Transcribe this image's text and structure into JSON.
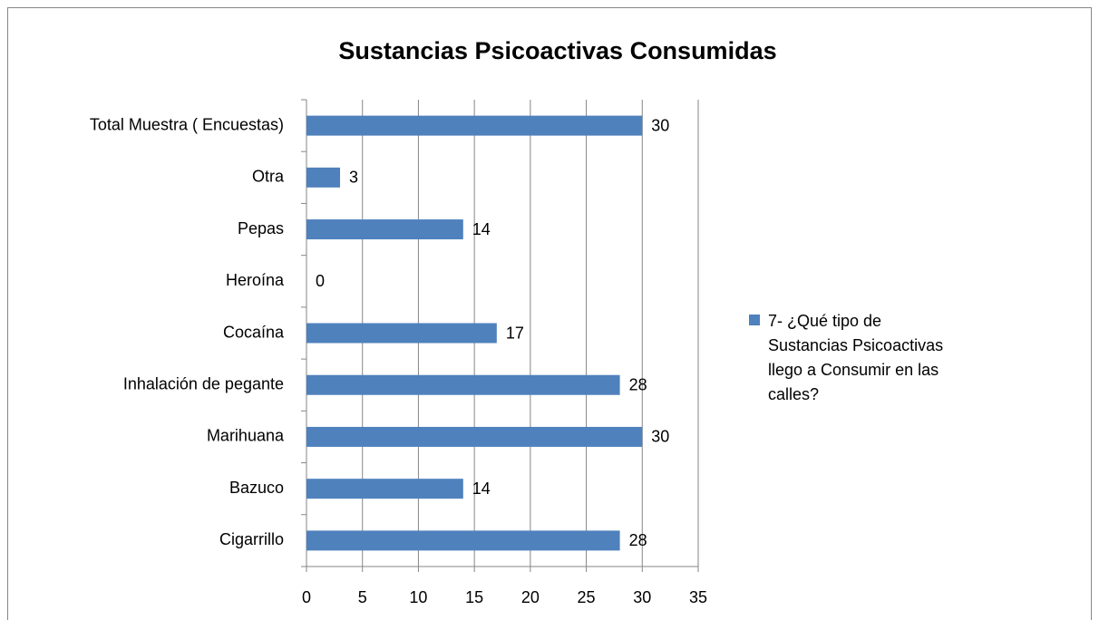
{
  "chart_data": {
    "type": "bar",
    "orientation": "horizontal",
    "title": "Sustancias Psicoactivas Consumidas",
    "categories": [
      "Cigarrillo",
      "Bazuco",
      "Marihuana",
      "Inhalación de pegante",
      "Cocaína",
      "Heroína",
      "Pepas",
      "Otra",
      "Total Muestra ( Encuestas)"
    ],
    "series": [
      {
        "name": "7- ¿Qué tipo de Sustancias Psicoactivas llego a Consumir en las calles?",
        "color": "#4f81bd",
        "values": [
          28,
          14,
          30,
          28,
          17,
          0,
          14,
          3,
          30
        ]
      }
    ],
    "xlim": [
      0,
      35
    ],
    "xticks": [
      0,
      5,
      10,
      15,
      20,
      25,
      30,
      35
    ],
    "grid": true,
    "legend": "right"
  }
}
